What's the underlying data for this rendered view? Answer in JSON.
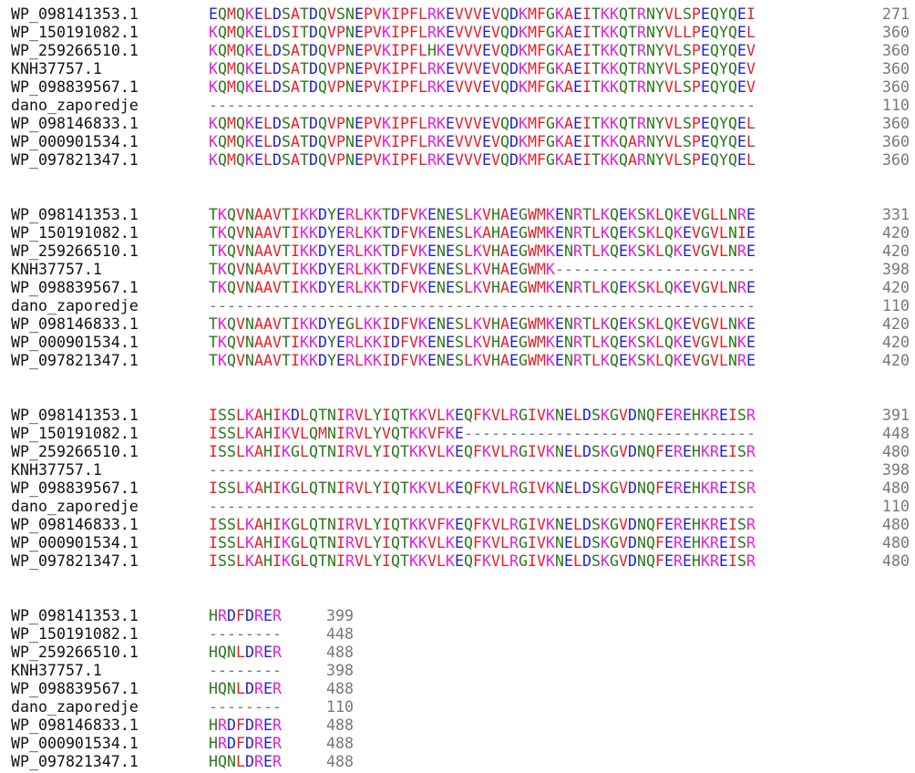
{
  "colors": {
    "acidic": "#e8202a",
    "basic": "#e020d8",
    "hydrophobic": "#e8202a",
    "polar": "#2a7a1a",
    "gap": "#777777",
    "label": "#111111",
    "position": "#777777",
    "groups": {
      "red": "AVFPMILW",
      "blue": "DE",
      "magenta": "RK",
      "green": "STYHCNGQ"
    },
    "hex": {
      "red": "#e8202a",
      "blue": "#1f1fd6",
      "magenta": "#e020d8",
      "green": "#2a7a1a",
      "gap": "#777777"
    }
  },
  "alignment": {
    "blocks": [
      {
        "rows": [
          {
            "name": "WP_098141353.1",
            "seq": "EQMQKELDSATDQVSNEPVKIPFLRKEVVVEVQDKMFGKAEITKKQTRNYVLSPEQYQEI",
            "pos": "271"
          },
          {
            "name": "WP_150191082.1",
            "seq": "KQMQKELDSITDQVPNEPVKIPFLRKEVVVEVQDKMFGKAEITKKQTRNYVLLPEQYQEL",
            "pos": "360"
          },
          {
            "name": "WP_259266510.1",
            "seq": "KQMQKELDSATDQVPNEPVKIPFLHKEVVVEVQDKMFGKAEITKKQTRNYVLSPEQYQEV",
            "pos": "360"
          },
          {
            "name": "KNH37757.1",
            "seq": "KQMQKELDSATDQVPNEPVKIPFLRKEVVVEVQDKMFGKAEITKKQTRNYVLSPEQYQEV",
            "pos": "360"
          },
          {
            "name": "WP_098839567.1",
            "seq": "KQMQKELDSATDQVPNEPVKIPFLRKEVVVEVQDKMFGKAEITKKQTRNYVLSPEQYQEV",
            "pos": "360"
          },
          {
            "name": "dano_zaporedje",
            "seq": "------------------------------------------------------------",
            "pos": "110"
          },
          {
            "name": "WP_098146833.1",
            "seq": "KQMQKELDSATDQVPNEPVKIPFLRKEVVVEVQDKMFGKAEITKKQTRNYVLSPEQYQEL",
            "pos": "360"
          },
          {
            "name": "WP_000901534.1",
            "seq": "KQMQKELDSATDQVPNEPVKIPFLRKEVVVEVQDKMFGKAEITKKQARNYVLSPEQYQEL",
            "pos": "360"
          },
          {
            "name": "WP_097821347.1",
            "seq": "KQMQKELDSATDQVPNEPVKIPFLRKEVVVEVQDKMFGKAEITKKQARNYVLSPEQYQEL",
            "pos": "360"
          }
        ]
      },
      {
        "rows": [
          {
            "name": "WP_098141353.1",
            "seq": "TKQVNAAVTIKKDYERLKKTDFVKENESLKVHAEGWMKENRTLKQEKSKLQKEVGLLNRE",
            "pos": "331"
          },
          {
            "name": "WP_150191082.1",
            "seq": "TKQVNAAVTIKKDYERLKKTDFVKENESLKAHAEGWMKENRTLKQEKSKLQKEVGVLNIE",
            "pos": "420"
          },
          {
            "name": "WP_259266510.1",
            "seq": "TKQVNAAVTIKKDYERLKKTDFVKENESLKVHAEGWMKENRTLKQEKSKLQKEVGVLNRE",
            "pos": "420"
          },
          {
            "name": "KNH37757.1",
            "seq": "TKQVNAAVTIKKDYERLKKTDFVKENESLKVHAEGWMK----------------------",
            "pos": "398"
          },
          {
            "name": "WP_098839567.1",
            "seq": "TKQVNAAVTIKKDYERLKKTDFVKENESLKVHAEGWMKENRTLKQEKSKLQKEVGVLNRE",
            "pos": "420"
          },
          {
            "name": "dano_zaporedje",
            "seq": "------------------------------------------------------------",
            "pos": "110"
          },
          {
            "name": "WP_098146833.1",
            "seq": "TKQVNAAVTIKKDYEGLKKIDFVKENESLKVHAEGWMKENRTLKQEKSKLQKEVGVLNKE",
            "pos": "420"
          },
          {
            "name": "WP_000901534.1",
            "seq": "TKQVNAAVTIKKDYERLKKIDFVKENESLKVHAEGWMKENRTLKQEKSKLQKEVGVLNKE",
            "pos": "420"
          },
          {
            "name": "WP_097821347.1",
            "seq": "TKQVNAAVTIKKDYERLKKIDFVKENESLKVHAEGWMKENRTLKQEKSKLQKEVGVLNRE",
            "pos": "420"
          }
        ]
      },
      {
        "rows": [
          {
            "name": "WP_098141353.1",
            "seq": "ISSLKAHIKDLQTNIRVLYIQTKKVLKEQFKVLRGIVKNELDSKGVDNQFEREHKREISR",
            "pos": "391"
          },
          {
            "name": "WP_150191082.1",
            "seq": "ISSLKAHIKVLQMNIRVLYVQTKKVFKE--------------------------------",
            "pos": "448"
          },
          {
            "name": "WP_259266510.1",
            "seq": "ISSLKAHIKGLQTNIRVLYIQTKKVLKEQFKVLRGIVKNELDSKGVDNQFEREHKREISR",
            "pos": "480"
          },
          {
            "name": "KNH37757.1",
            "seq": "------------------------------------------------------------",
            "pos": "398"
          },
          {
            "name": "WP_098839567.1",
            "seq": "ISSLKAHIKGLQTNIRVLYIQTKKVLKEQFKVLRGIVKNELDSKGVDNQFEREHKREISR",
            "pos": "480"
          },
          {
            "name": "dano_zaporedje",
            "seq": "------------------------------------------------------------",
            "pos": "110"
          },
          {
            "name": "WP_098146833.1",
            "seq": "ISSLKAHIKGLQTNIRVLYIQTKKVFKEQFKVLRGIVKNELDSKGVDNQFEREHKREISR",
            "pos": "480"
          },
          {
            "name": "WP_000901534.1",
            "seq": "ISSLKAHIKGLQTNIRVLYIQTKKVLKEQFKVLRGIVKNELDSKGVDNQFEREHKREISR",
            "pos": "480"
          },
          {
            "name": "WP_097821347.1",
            "seq": "ISSLKAHIKGLQTNIRVLYIQTKKVLKEQFKVLRGIVKNELDSKGVDNQFEREHKREISR",
            "pos": "480"
          }
        ]
      },
      {
        "short": true,
        "rows": [
          {
            "name": "WP_098141353.1",
            "seq": "HRDFDRER",
            "pos": "399"
          },
          {
            "name": "WP_150191082.1",
            "seq": "--------",
            "pos": "448"
          },
          {
            "name": "WP_259266510.1",
            "seq": "HQNLDRER",
            "pos": "488"
          },
          {
            "name": "KNH37757.1",
            "seq": "--------",
            "pos": "398"
          },
          {
            "name": "WP_098839567.1",
            "seq": "HQNLDRER",
            "pos": "488"
          },
          {
            "name": "dano_zaporedje",
            "seq": "--------",
            "pos": "110"
          },
          {
            "name": "WP_098146833.1",
            "seq": "HRDFDRER",
            "pos": "488"
          },
          {
            "name": "WP_000901534.1",
            "seq": "HRDFDRER",
            "pos": "488"
          },
          {
            "name": "WP_097821347.1",
            "seq": "HQNLDRER",
            "pos": "488"
          }
        ]
      }
    ]
  }
}
